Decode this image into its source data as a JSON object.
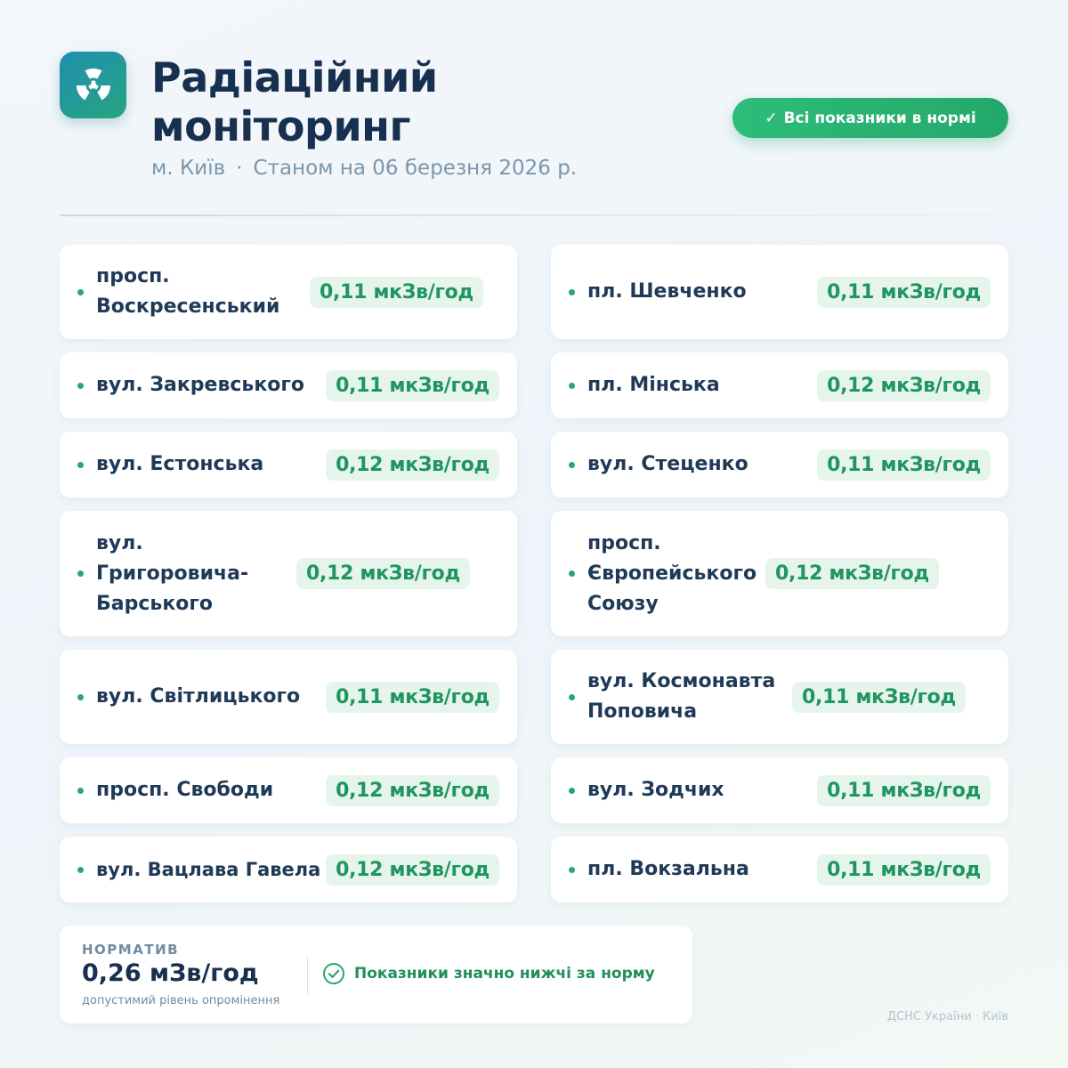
{
  "header": {
    "logo_icon": "radiation-icon",
    "title": "Радіаційний моніторинг",
    "city": "м. Київ",
    "separator": "·",
    "date_text": "Станом на 06 березня 2026 р.",
    "status_check": "✓",
    "status_text": "Всі показники в нормі"
  },
  "colors": {
    "accent_green": "#2aa86c",
    "accent_teal": "#1f8fb0",
    "title_navy": "#18304f"
  },
  "locations": [
    {
      "name": "просп. Воскресенський",
      "value": "0,11 мкЗв/год"
    },
    {
      "name": "пл. Шевченко",
      "value": "0,11 мкЗв/год"
    },
    {
      "name": "вул. Закревського",
      "value": "0,11 мкЗв/год"
    },
    {
      "name": "пл. Мінська",
      "value": "0,12 мкЗв/год"
    },
    {
      "name": "вул. Естонська",
      "value": "0,12 мкЗв/год"
    },
    {
      "name": "вул. Стеценко",
      "value": "0,11 мкЗв/год"
    },
    {
      "name": "вул. Григоровича-Барського",
      "value": "0,12 мкЗв/год"
    },
    {
      "name": "просп. Європейського Союзу",
      "value": "0,12 мкЗв/год"
    },
    {
      "name": "вул. Світлицького",
      "value": "0,11 мкЗв/год"
    },
    {
      "name": "вул. Космонавта Поповича",
      "value": "0,11 мкЗв/год"
    },
    {
      "name": "просп. Свободи",
      "value": "0,12 мкЗв/год"
    },
    {
      "name": "вул. Зодчих",
      "value": "0,11 мкЗв/год"
    },
    {
      "name": "вул. Вацлава Гавела",
      "value": "0,12 мкЗв/год"
    },
    {
      "name": "пл. Вокзальна",
      "value": "0,11 мкЗв/год"
    }
  ],
  "norm": {
    "label": "НОРМАТИВ",
    "value": "0,26 мЗв/год",
    "note": "допустимий рівень опромінення",
    "ok_icon": "check-circle-icon",
    "ok_text": "Показники значно нижчі за норму"
  },
  "footer": {
    "source": "ДСНС України · Київ"
  }
}
